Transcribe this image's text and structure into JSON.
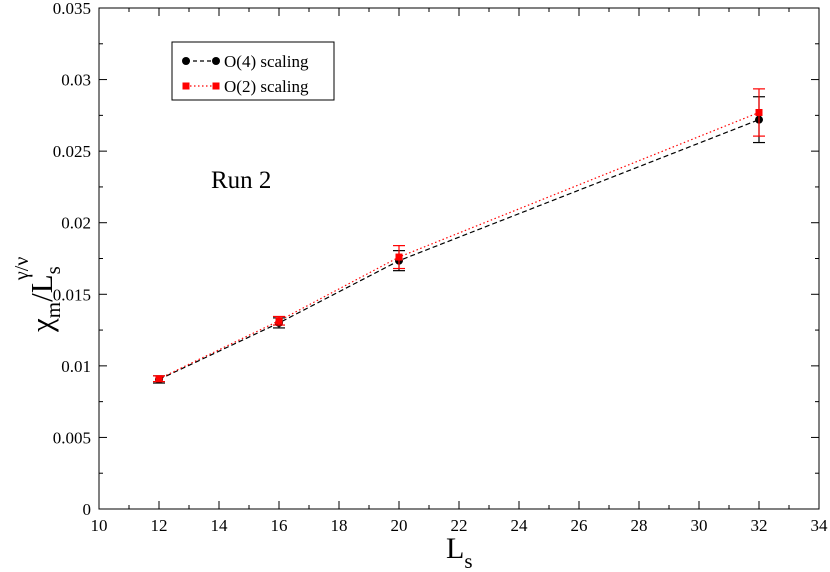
{
  "chart_data": {
    "type": "line",
    "title": "",
    "annotation": "Run 2",
    "xlabel": {
      "main": "L",
      "sub": "s"
    },
    "ylabel": {
      "chi": "χ",
      "chi_sub": "m",
      "slash": "/L",
      "l_sub": "s",
      "exponent": "γ/ν"
    },
    "xlim": [
      10,
      34
    ],
    "ylim": [
      0,
      0.035
    ],
    "xticks": [
      10,
      12,
      14,
      16,
      18,
      20,
      22,
      24,
      26,
      28,
      30,
      32,
      34
    ],
    "xtick_labels": [
      "10",
      "12",
      "14",
      "16",
      "18",
      "20",
      "22",
      "24",
      "26",
      "28",
      "30",
      "32",
      "34"
    ],
    "yticks": [
      0,
      0.005,
      0.01,
      0.015,
      0.02,
      0.025,
      0.03,
      0.035
    ],
    "ytick_labels": [
      "0",
      "0.005",
      "0.01",
      "0.015",
      "0.02",
      "0.025",
      "0.03",
      "0.035"
    ],
    "grid": false,
    "legend_position": "top-left",
    "series": [
      {
        "name": "O(4) scaling",
        "color": "#000000",
        "marker": "circle",
        "line": "dashed",
        "x": [
          12,
          16,
          20,
          32
        ],
        "y": [
          0.00905,
          0.013,
          0.01735,
          0.0272
        ],
        "err": [
          0.00025,
          0.00035,
          0.0007,
          0.0016
        ]
      },
      {
        "name": "O(2) scaling",
        "color": "#ff0000",
        "marker": "square",
        "line": "dotted",
        "x": [
          12,
          16,
          20,
          32
        ],
        "y": [
          0.0091,
          0.01315,
          0.0176,
          0.0277
        ],
        "err": [
          0.0002,
          0.0003,
          0.0008,
          0.00165
        ]
      }
    ]
  }
}
